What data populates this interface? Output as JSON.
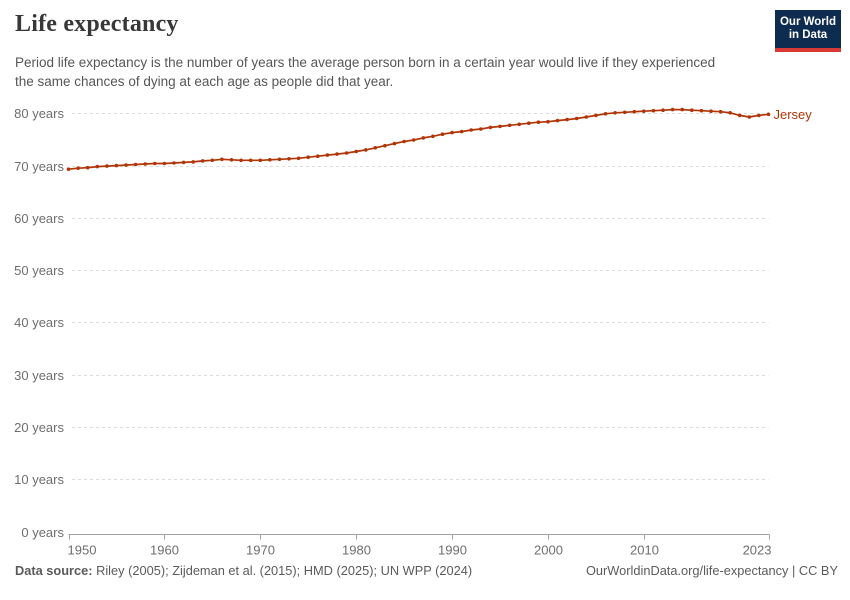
{
  "header": {
    "title": "Life expectancy",
    "subtitle": "Period life expectancy is the number of years the average person born in a certain year would live if they experienced the same chances of dying at each age as people did that year.",
    "logo_line1": "Our World",
    "logo_line2": "in Data"
  },
  "chart_data": {
    "type": "line",
    "title": "Life expectancy",
    "entity_label": "Jersey",
    "x": [
      1950,
      1951,
      1952,
      1953,
      1954,
      1955,
      1956,
      1957,
      1958,
      1959,
      1960,
      1961,
      1962,
      1963,
      1964,
      1965,
      1966,
      1967,
      1968,
      1969,
      1970,
      1971,
      1972,
      1973,
      1974,
      1975,
      1976,
      1977,
      1978,
      1979,
      1980,
      1981,
      1982,
      1983,
      1984,
      1985,
      1986,
      1987,
      1988,
      1989,
      1990,
      1991,
      1992,
      1993,
      1994,
      1995,
      1996,
      1997,
      1998,
      1999,
      2000,
      2001,
      2002,
      2003,
      2004,
      2005,
      2006,
      2007,
      2008,
      2009,
      2010,
      2011,
      2012,
      2013,
      2014,
      2015,
      2016,
      2017,
      2018,
      2019,
      2020,
      2021,
      2022,
      2023
    ],
    "series": [
      {
        "name": "Jersey",
        "values": [
          69.3,
          69.5,
          69.6,
          69.8,
          69.9,
          70.0,
          70.1,
          70.2,
          70.3,
          70.4,
          70.4,
          70.5,
          70.6,
          70.7,
          70.9,
          71.0,
          71.2,
          71.1,
          71.0,
          71.0,
          71.0,
          71.1,
          71.2,
          71.3,
          71.4,
          71.6,
          71.8,
          72.0,
          72.2,
          72.4,
          72.7,
          73.0,
          73.4,
          73.8,
          74.2,
          74.6,
          74.9,
          75.3,
          75.6,
          76.0,
          76.3,
          76.5,
          76.8,
          77.0,
          77.3,
          77.5,
          77.7,
          77.9,
          78.1,
          78.3,
          78.4,
          78.6,
          78.8,
          79.0,
          79.3,
          79.6,
          79.9,
          80.1,
          80.2,
          80.3,
          80.4,
          80.5,
          80.6,
          80.7,
          80.7,
          80.6,
          80.5,
          80.4,
          80.3,
          80.1,
          79.6,
          79.3,
          79.6,
          79.8
        ]
      }
    ],
    "xlabel": "",
    "ylabel": "years",
    "ylim": [
      0,
      83
    ],
    "xlim": [
      1950,
      2023
    ],
    "yticks": [
      0,
      10,
      20,
      30,
      40,
      50,
      60,
      70,
      80
    ],
    "ytick_suffix": " years",
    "xticks": [
      1950,
      1960,
      1970,
      1980,
      1990,
      2000,
      2010,
      2023
    ],
    "grid": "horizontal-dashed",
    "legend_position": "end-of-line-label",
    "line_color": "#b13507",
    "grid_color": "#dcdcdc",
    "axis_color": "#a3a3a3",
    "tick_label_color": "#6e6e6e"
  },
  "footer": {
    "source_label": "Data source:",
    "source_text": "Riley (2005); Zijdeman et al. (2015); HMD (2025); UN WPP (2024)",
    "url": "OurWorldinData.org/life-expectancy",
    "separator": " | ",
    "license": "CC BY"
  }
}
